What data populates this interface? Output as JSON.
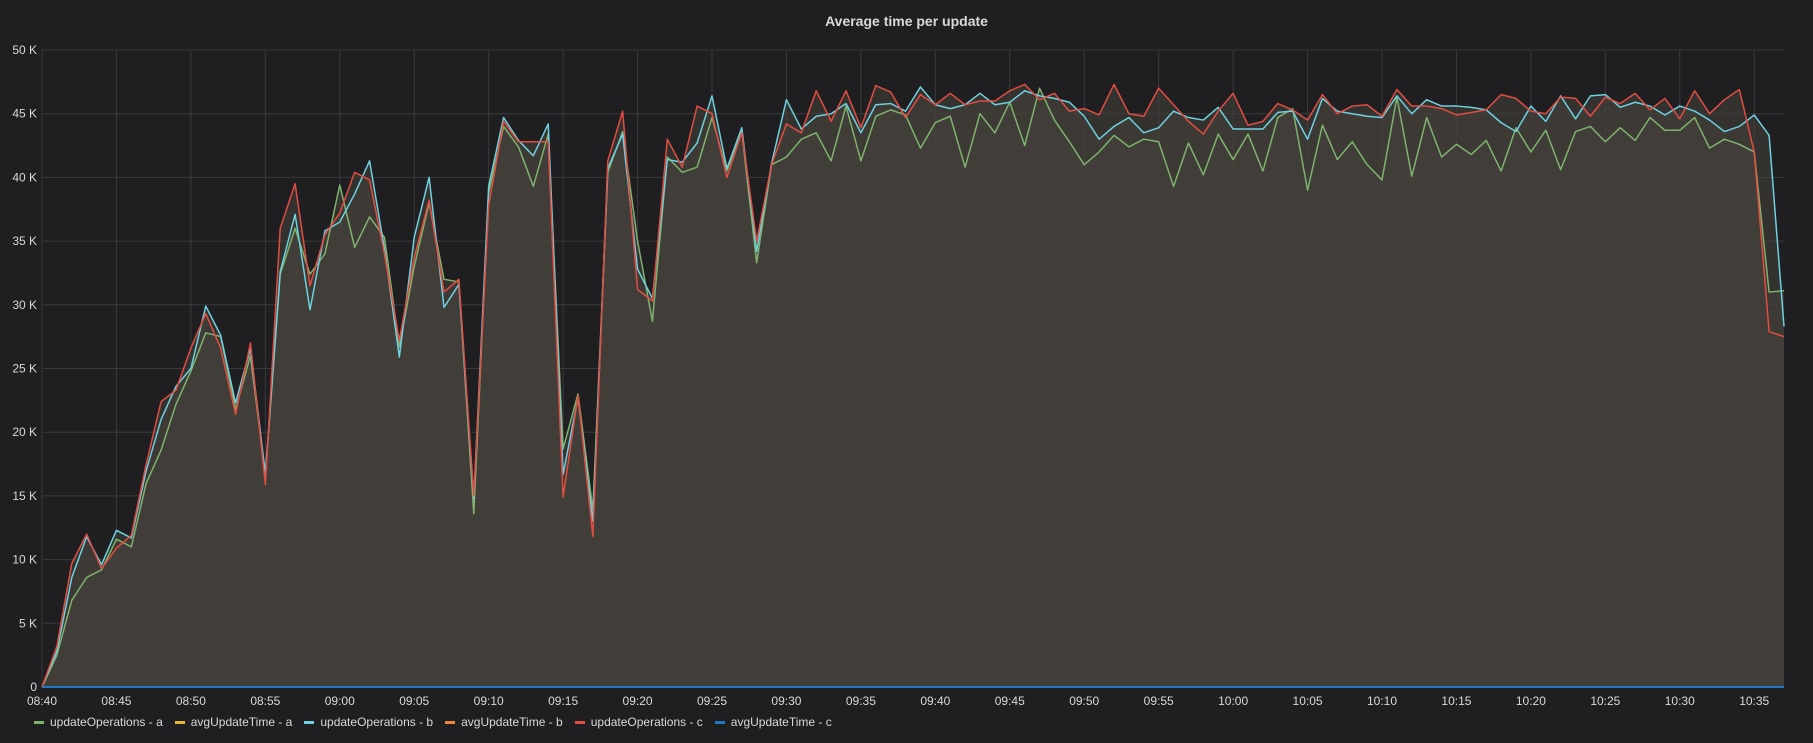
{
  "panel": {
    "title": "Average time per update"
  },
  "colors": {
    "background": "#1f1f21",
    "grid": "#3a3a3c",
    "tick_text": "#d8d9da",
    "fill": "#45413c"
  },
  "chart_data": {
    "type": "line",
    "title": "Average time per update",
    "xlabel": "",
    "ylabel": "",
    "xlim": [
      "08:40",
      "10:37"
    ],
    "ylim": [
      0,
      50000
    ],
    "x_ticks": [
      "08:40",
      "08:45",
      "08:50",
      "08:55",
      "09:00",
      "09:05",
      "09:10",
      "09:15",
      "09:20",
      "09:25",
      "09:30",
      "09:35",
      "09:40",
      "09:45",
      "09:50",
      "09:55",
      "10:00",
      "10:05",
      "10:10",
      "10:15",
      "10:20",
      "10:25",
      "10:30",
      "10:35"
    ],
    "y_ticks": [
      "0",
      "5 K",
      "10 K",
      "15 K",
      "20 K",
      "25 K",
      "30 K",
      "35 K",
      "40 K",
      "45 K",
      "50 K"
    ],
    "grid": true,
    "legend_position": "bottom-left",
    "x": [
      "08:40",
      "08:41",
      "08:42",
      "08:43",
      "08:44",
      "08:45",
      "08:46",
      "08:47",
      "08:48",
      "08:49",
      "08:50",
      "08:51",
      "08:52",
      "08:53",
      "08:54",
      "08:55",
      "08:56",
      "08:57",
      "08:58",
      "08:59",
      "09:00",
      "09:01",
      "09:02",
      "09:03",
      "09:04",
      "09:05",
      "09:06",
      "09:07",
      "09:08",
      "09:09",
      "09:10",
      "09:11",
      "09:12",
      "09:13",
      "09:14",
      "09:15",
      "09:16",
      "09:17",
      "09:18",
      "09:19",
      "09:20",
      "09:21",
      "09:22",
      "09:23",
      "09:24",
      "09:25",
      "09:26",
      "09:27",
      "09:28",
      "09:29",
      "09:30",
      "09:31",
      "09:32",
      "09:33",
      "09:34",
      "09:35",
      "09:36",
      "09:37",
      "09:38",
      "09:39",
      "09:40",
      "09:41",
      "09:42",
      "09:43",
      "09:44",
      "09:45",
      "09:46",
      "09:47",
      "09:48",
      "09:49",
      "09:50",
      "09:51",
      "09:52",
      "09:53",
      "09:54",
      "09:55",
      "09:56",
      "09:57",
      "09:58",
      "09:59",
      "10:00",
      "10:01",
      "10:02",
      "10:03",
      "10:04",
      "10:05",
      "10:06",
      "10:07",
      "10:08",
      "10:09",
      "10:10",
      "10:11",
      "10:12",
      "10:13",
      "10:14",
      "10:15",
      "10:16",
      "10:17",
      "10:18",
      "10:19",
      "10:20",
      "10:21",
      "10:22",
      "10:23",
      "10:24",
      "10:25",
      "10:26",
      "10:27",
      "10:28",
      "10:29",
      "10:30",
      "10:31",
      "10:32",
      "10:33",
      "10:34",
      "10:35",
      "10:36",
      "10:37"
    ],
    "series": [
      {
        "name": "updateOperations - a",
        "color": "#7eb26d",
        "values": [
          0,
          2500,
          6800,
          8600,
          9200,
          11600,
          11000,
          16000,
          18600,
          22200,
          24800,
          27800,
          27500,
          21800,
          26000,
          16600,
          32400,
          36000,
          32400,
          34000,
          39400,
          34500,
          36900,
          35300,
          26700,
          33000,
          38000,
          32000,
          31800,
          13600,
          38800,
          44000,
          42400,
          39300,
          43400,
          18700,
          23000,
          13900,
          40400,
          43600,
          35000,
          28700,
          41600,
          40400,
          40800,
          44700,
          40500,
          43600,
          33300,
          41000,
          41600,
          43000,
          43500,
          41300,
          45600,
          41300,
          44800,
          45300,
          44900,
          42300,
          44300,
          44800,
          40800,
          45000,
          43500,
          45900,
          42500,
          47000,
          44500,
          42800,
          41000,
          42000,
          43300,
          42400,
          43000,
          42800,
          39300,
          42700,
          40200,
          43400,
          41400,
          43400,
          40500,
          44700,
          45400,
          39000,
          44100,
          41400,
          42800,
          41000,
          39800,
          46300,
          40100,
          44700,
          41600,
          42600,
          41800,
          42900,
          40500,
          43900,
          42000,
          43700,
          40600,
          43600,
          44000,
          42800,
          43900,
          42900,
          44700,
          43700,
          43700,
          44700,
          42300,
          43000,
          42600,
          42000,
          31000,
          31100
        ]
      },
      {
        "name": "avgUpdateTime - a",
        "color": "#eab839",
        "values": [
          0,
          0,
          0,
          0,
          0,
          0,
          0,
          0,
          0,
          0,
          0,
          0,
          0,
          0,
          0,
          0,
          0,
          0,
          0,
          0,
          0,
          0,
          0,
          0,
          0,
          0,
          0,
          0,
          0,
          0,
          0,
          0,
          0,
          0,
          0,
          0,
          0,
          0,
          0,
          0,
          0,
          0,
          0,
          0,
          0,
          0,
          0,
          0,
          0,
          0,
          0,
          0,
          0,
          0,
          0,
          0,
          0,
          0,
          0,
          0,
          0,
          0,
          0,
          0,
          0,
          0,
          0,
          0,
          0,
          0,
          0,
          0,
          0,
          0,
          0,
          0,
          0,
          0,
          0,
          0,
          0,
          0,
          0,
          0,
          0,
          0,
          0,
          0,
          0,
          0,
          0,
          0,
          0,
          0,
          0,
          0,
          0,
          0,
          0,
          0,
          0,
          0,
          0,
          0,
          0,
          0,
          0,
          0,
          0,
          0,
          0,
          0,
          0,
          0,
          0,
          0,
          0,
          0
        ]
      },
      {
        "name": "updateOperations - b",
        "color": "#6ed0e0",
        "values": [
          0,
          2800,
          8600,
          11800,
          9600,
          12300,
          11700,
          17000,
          21000,
          23600,
          25000,
          29900,
          27600,
          22300,
          26600,
          16700,
          32600,
          37100,
          29600,
          35800,
          36500,
          38700,
          41300,
          34400,
          25900,
          35300,
          40000,
          29800,
          31600,
          14800,
          39300,
          44700,
          42900,
          41700,
          44200,
          16700,
          22700,
          13000,
          40700,
          43400,
          32800,
          30500,
          41400,
          41200,
          42700,
          46400,
          40700,
          43900,
          34200,
          41100,
          46100,
          43800,
          44800,
          45000,
          45800,
          43500,
          45700,
          45800,
          45200,
          47100,
          45700,
          45400,
          45700,
          46600,
          45700,
          45900,
          46800,
          46400,
          46200,
          45900,
          44800,
          43000,
          44000,
          44700,
          43500,
          43900,
          45200,
          44700,
          44500,
          45500,
          43800,
          43800,
          43800,
          45100,
          45200,
          43000,
          46200,
          45200,
          45000,
          44800,
          44700,
          46400,
          45000,
          46100,
          45600,
          45600,
          45500,
          45300,
          44300,
          43600,
          45600,
          44400,
          46400,
          44600,
          46400,
          46500,
          45500,
          45900,
          45600,
          44900,
          45600,
          45200,
          44500,
          43600,
          44000,
          44900,
          43300,
          28300
        ]
      },
      {
        "name": "avgUpdateTime - b",
        "color": "#ef843c",
        "values": [
          0,
          0,
          0,
          0,
          0,
          0,
          0,
          0,
          0,
          0,
          0,
          0,
          0,
          0,
          0,
          0,
          0,
          0,
          0,
          0,
          0,
          0,
          0,
          0,
          0,
          0,
          0,
          0,
          0,
          0,
          0,
          0,
          0,
          0,
          0,
          0,
          0,
          0,
          0,
          0,
          0,
          0,
          0,
          0,
          0,
          0,
          0,
          0,
          0,
          0,
          0,
          0,
          0,
          0,
          0,
          0,
          0,
          0,
          0,
          0,
          0,
          0,
          0,
          0,
          0,
          0,
          0,
          0,
          0,
          0,
          0,
          0,
          0,
          0,
          0,
          0,
          0,
          0,
          0,
          0,
          0,
          0,
          0,
          0,
          0,
          0,
          0,
          0,
          0,
          0,
          0,
          0,
          0,
          0,
          0,
          0,
          0,
          0,
          0,
          0,
          0,
          0,
          0,
          0,
          0,
          0,
          0,
          0,
          0,
          0,
          0,
          0,
          0,
          0,
          0,
          0,
          0,
          0
        ]
      },
      {
        "name": "updateOperations - c",
        "color": "#e24d42",
        "values": [
          0,
          3200,
          9700,
          12000,
          9300,
          10900,
          11900,
          17500,
          22400,
          23300,
          26600,
          29300,
          26600,
          21400,
          27000,
          15900,
          36000,
          39500,
          31500,
          35500,
          37200,
          40400,
          39800,
          34000,
          27200,
          33700,
          38200,
          31000,
          32000,
          15000,
          37800,
          44400,
          42800,
          42800,
          42800,
          14900,
          22900,
          11800,
          41300,
          45200,
          31200,
          30300,
          43000,
          40800,
          45600,
          45000,
          40000,
          43500,
          35000,
          41000,
          44200,
          43500,
          46800,
          44400,
          46800,
          43900,
          47200,
          46700,
          44700,
          46500,
          45700,
          46600,
          45700,
          46000,
          46000,
          46800,
          47300,
          46100,
          46600,
          45200,
          45400,
          44900,
          47300,
          45000,
          44800,
          47000,
          45700,
          44400,
          43400,
          45200,
          46600,
          44100,
          44400,
          45800,
          45300,
          44500,
          46500,
          45000,
          45600,
          45700,
          44800,
          46900,
          45600,
          45600,
          45400,
          44900,
          45100,
          45300,
          46500,
          46200,
          45200,
          45000,
          46300,
          46200,
          44800,
          46300,
          45800,
          46600,
          45300,
          46200,
          44600,
          46800,
          45000,
          46100,
          46900,
          42000,
          27900,
          27500
        ]
      },
      {
        "name": "avgUpdateTime - c",
        "color": "#1f78c1",
        "values": [
          0,
          0,
          0,
          0,
          0,
          0,
          0,
          0,
          0,
          0,
          0,
          0,
          0,
          0,
          0,
          0,
          0,
          0,
          0,
          0,
          0,
          0,
          0,
          0,
          0,
          0,
          0,
          0,
          0,
          0,
          0,
          0,
          0,
          0,
          0,
          0,
          0,
          0,
          0,
          0,
          0,
          0,
          0,
          0,
          0,
          0,
          0,
          0,
          0,
          0,
          0,
          0,
          0,
          0,
          0,
          0,
          0,
          0,
          0,
          0,
          0,
          0,
          0,
          0,
          0,
          0,
          0,
          0,
          0,
          0,
          0,
          0,
          0,
          0,
          0,
          0,
          0,
          0,
          0,
          0,
          0,
          0,
          0,
          0,
          0,
          0,
          0,
          0,
          0,
          0,
          0,
          0,
          0,
          0,
          0,
          0,
          0,
          0,
          0,
          0,
          0,
          0,
          0,
          0,
          0,
          0,
          0,
          0,
          0,
          0,
          0,
          0,
          0,
          0,
          0,
          0,
          0,
          0
        ]
      }
    ]
  }
}
